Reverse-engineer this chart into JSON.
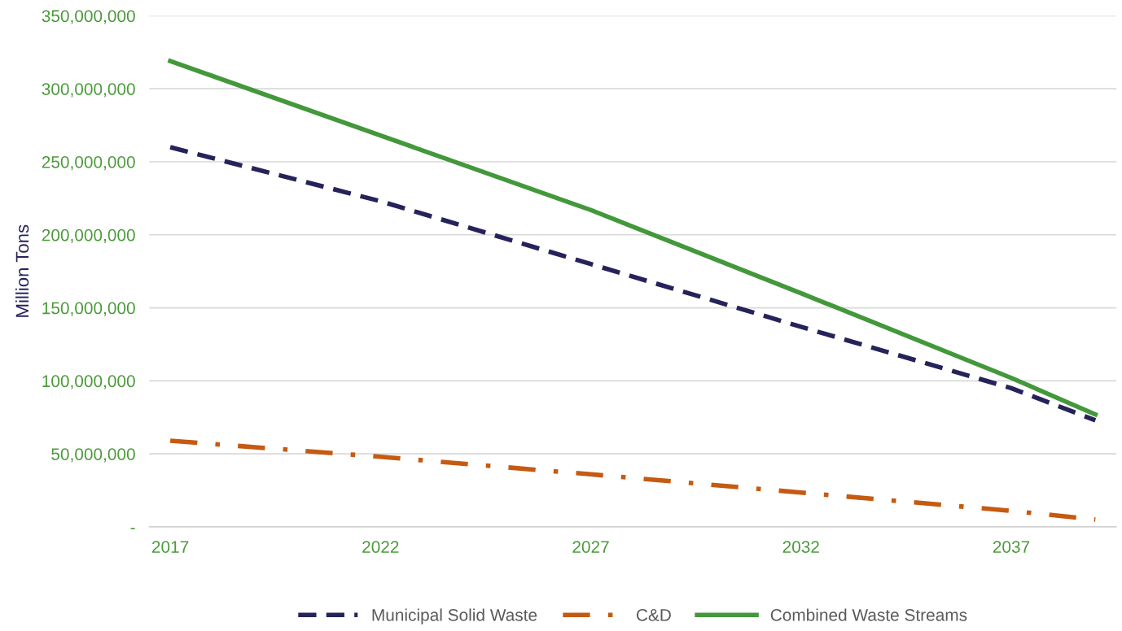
{
  "chart_data": {
    "type": "line",
    "ylabel": "Million Tons",
    "x": [
      2017,
      2022,
      2027,
      2032,
      2037,
      2039
    ],
    "series": [
      {
        "name": "Municipal Solid Waste",
        "color": "#25235a",
        "line_style": "dashed",
        "values": [
          260000000,
          223000000,
          180000000,
          137000000,
          95000000,
          73000000
        ]
      },
      {
        "name": "C&D",
        "color": "#c55a11",
        "line_style": "dashdot",
        "values": [
          59000000,
          48000000,
          36000000,
          23500000,
          11000000,
          5000000
        ]
      },
      {
        "name": "Combined Waste Streams",
        "color": "#43983b",
        "line_style": "solid",
        "values": [
          319000000,
          268000000,
          217000000,
          160000000,
          102000000,
          77000000
        ]
      }
    ],
    "xlim": [
      2016.5,
      2039.5
    ],
    "xticks": [
      2017,
      2022,
      2027,
      2032,
      2037
    ],
    "ylim": [
      0,
      350000000
    ],
    "yticks": [
      {
        "value": 0,
        "label": "-"
      },
      {
        "value": 50000000,
        "label": "50,000,000"
      },
      {
        "value": 100000000,
        "label": "100,000,000"
      },
      {
        "value": 150000000,
        "label": "150,000,000"
      },
      {
        "value": 200000000,
        "label": "200,000,000"
      },
      {
        "value": 250000000,
        "label": "250,000,000"
      },
      {
        "value": 300000000,
        "label": "300,000,000"
      },
      {
        "value": 350000000,
        "label": "350,000,000"
      }
    ],
    "grid": "y",
    "legend": "bottom"
  }
}
